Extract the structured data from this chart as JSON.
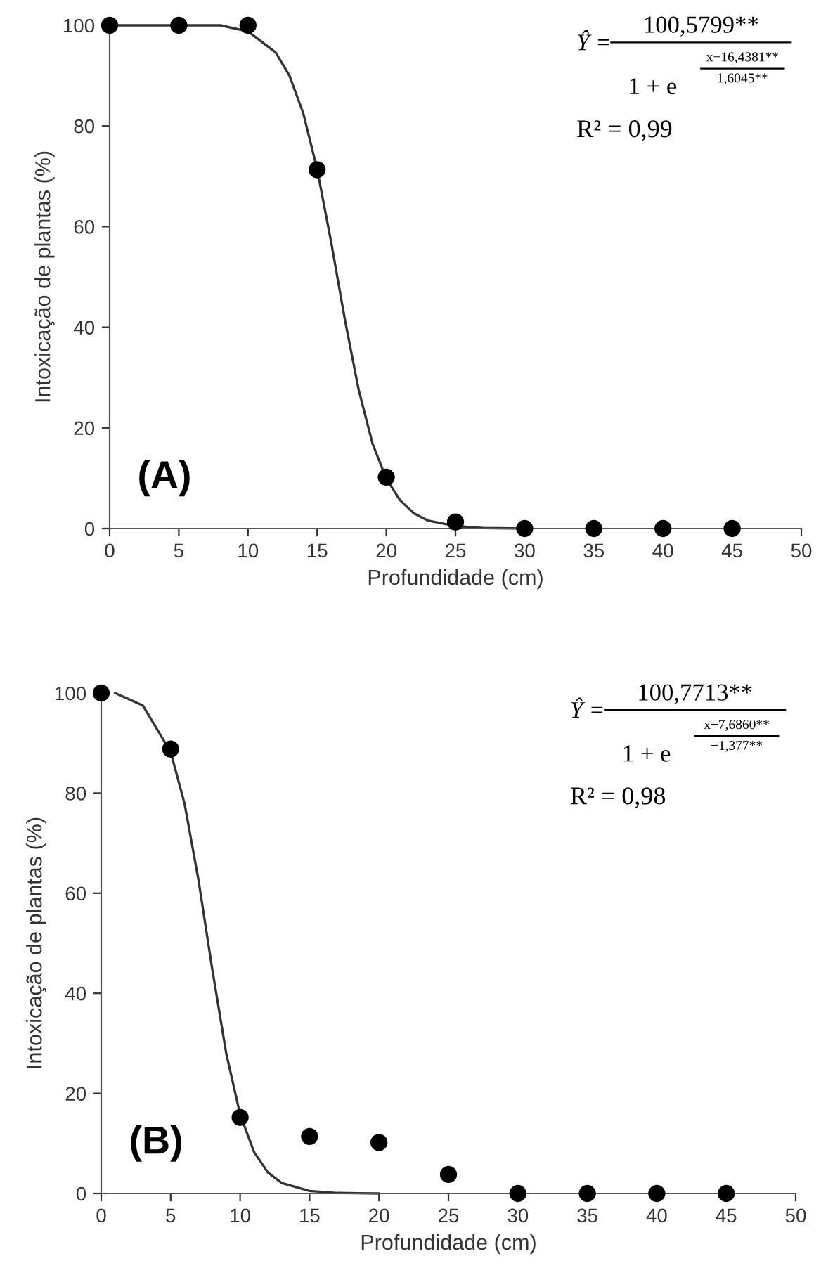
{
  "chart_data": [
    {
      "type": "scatter",
      "xlabel": "Profundidade (cm)",
      "ylabel": "Intoxicação de plantas (%)",
      "xlim": [
        0,
        50
      ],
      "xticks": [
        0,
        5,
        10,
        15,
        20,
        25,
        30,
        35,
        40,
        45,
        50
      ],
      "ylim": [
        0,
        100
      ],
      "yticks": [
        0,
        20,
        40,
        60,
        80,
        100
      ],
      "annotations": [
        "Ŷ =",
        "100,5799**",
        "1 + e",
        "x−16,4381**",
        "1,6045**",
        "R² = 0,99",
        "(A)"
      ],
      "series": [
        {
          "type": "scatter",
          "color": "#000000",
          "marker": "circle",
          "x": [
            0,
            5,
            10,
            15,
            20,
            25,
            30,
            35,
            40,
            45
          ],
          "values": [
            100,
            100,
            100,
            71.3,
            10.2,
            1.3,
            0,
            0,
            0,
            0
          ]
        },
        {
          "type": "line",
          "color": "#333333",
          "marker": "none",
          "line_style": "solid",
          "x": [
            0,
            5,
            8,
            10,
            12,
            13,
            14,
            15,
            16,
            17,
            18,
            19,
            20,
            21,
            22,
            23,
            25,
            27,
            30
          ],
          "values": [
            100,
            100,
            100,
            98.8,
            94.6,
            90,
            82.5,
            71.4,
            57.1,
            41.6,
            27.6,
            16.9,
            9.9,
            5.6,
            3,
            1.6,
            0.5,
            0.1,
            0
          ]
        }
      ]
    },
    {
      "type": "scatter",
      "xlabel": "Profundidade (cm)",
      "ylabel": "Intoxicação de plantas (%)",
      "xlim": [
        0,
        50
      ],
      "xticks": [
        0,
        5,
        10,
        15,
        20,
        25,
        30,
        35,
        40,
        45,
        50
      ],
      "ylim": [
        0,
        100
      ],
      "yticks": [
        0,
        20,
        40,
        60,
        80,
        100
      ],
      "annotations": [
        "Ŷ =",
        "100,7713**",
        "1 + e",
        "x−7,6860**",
        "−1,377**",
        "R² = 0,98",
        "(B)"
      ],
      "series": [
        {
          "type": "scatter",
          "color": "#000000",
          "marker": "circle",
          "x": [
            0,
            5,
            10,
            15,
            20,
            25,
            30,
            35,
            40,
            45
          ],
          "values": [
            100,
            88.8,
            15.2,
            11.4,
            10.2,
            3.8,
            0,
            0,
            0,
            0
          ]
        },
        {
          "type": "line",
          "color": "#333333",
          "marker": "none",
          "line_style": "solid",
          "x": [
            1,
            3,
            5,
            6,
            7,
            8,
            9,
            10,
            11,
            12,
            13,
            15,
            17,
            20
          ],
          "values": [
            100,
            97.5,
            88.2,
            77.9,
            62.7,
            44.7,
            28,
            15.8,
            8.3,
            4.2,
            2.1,
            0.5,
            0.1,
            0
          ]
        }
      ]
    }
  ]
}
